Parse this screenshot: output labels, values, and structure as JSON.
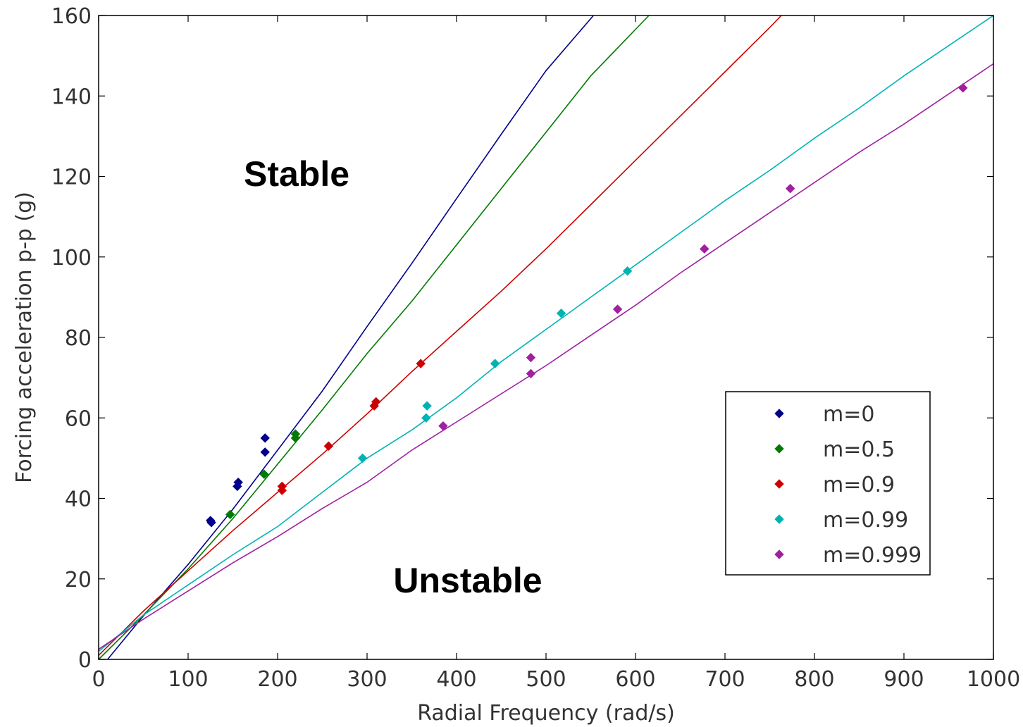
{
  "chart_data": {
    "type": "scatter",
    "title": "",
    "xlabel": "Radial Frequency (rad/s)",
    "ylabel": "Forcing acceleration p-p (g)",
    "xlim": [
      0,
      1000
    ],
    "ylim": [
      0,
      160
    ],
    "xticks": [
      0,
      100,
      200,
      300,
      400,
      500,
      600,
      700,
      800,
      900,
      1000
    ],
    "yticks": [
      0,
      20,
      40,
      60,
      80,
      100,
      120,
      140,
      160
    ],
    "grid": false,
    "legend_position": "right",
    "annotations": [
      {
        "text": "Stable",
        "x": 220,
        "y": 121
      },
      {
        "text": "Unstable",
        "x": 411,
        "y": 20
      }
    ],
    "series": [
      {
        "name": "m=0",
        "color": "#00008b",
        "points": [
          [
            125,
            34.5
          ],
          [
            126,
            34
          ],
          [
            155,
            43
          ],
          [
            156,
            44
          ],
          [
            186,
            55
          ],
          [
            186,
            51.5
          ]
        ],
        "fit": [
          [
            10,
            0
          ],
          [
            50,
            10.8
          ],
          [
            100,
            23.6
          ],
          [
            150,
            37.3
          ],
          [
            200,
            52
          ],
          [
            250,
            66.7
          ],
          [
            300,
            82.7
          ],
          [
            350,
            98.4
          ],
          [
            400,
            114.5
          ],
          [
            450,
            130.5
          ],
          [
            500,
            146.3
          ],
          [
            553,
            160
          ]
        ]
      },
      {
        "name": "m=0.5",
        "color": "#007a00",
        "points": [
          [
            147,
            36
          ],
          [
            185,
            46
          ],
          [
            220,
            55
          ],
          [
            220,
            56
          ]
        ],
        "fit": [
          [
            0,
            0
          ],
          [
            50,
            11
          ],
          [
            100,
            22.5
          ],
          [
            150,
            35
          ],
          [
            200,
            48.5
          ],
          [
            250,
            62
          ],
          [
            300,
            76
          ],
          [
            350,
            89
          ],
          [
            400,
            103
          ],
          [
            450,
            117
          ],
          [
            500,
            131
          ],
          [
            550,
            145
          ],
          [
            615,
            160
          ]
        ]
      },
      {
        "name": "m=0.9",
        "color": "#cc0000",
        "points": [
          [
            205,
            42
          ],
          [
            205,
            43
          ],
          [
            257,
            53
          ],
          [
            308,
            63
          ],
          [
            310,
            64
          ],
          [
            360,
            73.5
          ]
        ],
        "fit": [
          [
            0,
            1
          ],
          [
            50,
            12
          ],
          [
            100,
            22
          ],
          [
            150,
            32
          ],
          [
            200,
            41.5
          ],
          [
            250,
            51
          ],
          [
            300,
            61
          ],
          [
            350,
            71.5
          ],
          [
            400,
            81.5
          ],
          [
            450,
            91.5
          ],
          [
            500,
            102
          ],
          [
            550,
            113
          ],
          [
            600,
            124
          ],
          [
            650,
            135
          ],
          [
            700,
            146
          ],
          [
            750,
            157
          ],
          [
            763,
            160
          ]
        ]
      },
      {
        "name": "m=0.99",
        "color": "#00b3b3",
        "points": [
          [
            295,
            50
          ],
          [
            366,
            60
          ],
          [
            367,
            63
          ],
          [
            443,
            73.5
          ],
          [
            517,
            86
          ],
          [
            591,
            96.5
          ]
        ],
        "fit": [
          [
            0,
            2
          ],
          [
            50,
            11
          ],
          [
            100,
            18.5
          ],
          [
            150,
            26
          ],
          [
            200,
            33
          ],
          [
            250,
            41.5
          ],
          [
            300,
            50
          ],
          [
            350,
            57
          ],
          [
            400,
            65
          ],
          [
            450,
            74
          ],
          [
            500,
            82
          ],
          [
            550,
            90
          ],
          [
            600,
            98
          ],
          [
            650,
            106
          ],
          [
            700,
            114
          ],
          [
            750,
            121.5
          ],
          [
            800,
            129.5
          ],
          [
            850,
            137
          ],
          [
            900,
            145
          ],
          [
            950,
            152.5
          ],
          [
            1000,
            160
          ]
        ]
      },
      {
        "name": "m=0.999",
        "color": "#a020a0",
        "points": [
          [
            385,
            58
          ],
          [
            483,
            71
          ],
          [
            483,
            75
          ],
          [
            580,
            87
          ],
          [
            677,
            102
          ],
          [
            773,
            117
          ],
          [
            966,
            142
          ]
        ],
        "fit": [
          [
            0,
            2.5
          ],
          [
            50,
            10
          ],
          [
            100,
            17
          ],
          [
            150,
            24
          ],
          [
            200,
            30.5
          ],
          [
            250,
            37.5
          ],
          [
            300,
            44
          ],
          [
            350,
            52
          ],
          [
            400,
            59
          ],
          [
            450,
            66
          ],
          [
            500,
            73
          ],
          [
            550,
            80.5
          ],
          [
            600,
            88
          ],
          [
            650,
            96
          ],
          [
            700,
            103.5
          ],
          [
            750,
            111
          ],
          [
            800,
            118.5
          ],
          [
            850,
            126
          ],
          [
            900,
            133
          ],
          [
            950,
            140.5
          ],
          [
            1000,
            148
          ]
        ]
      }
    ]
  }
}
